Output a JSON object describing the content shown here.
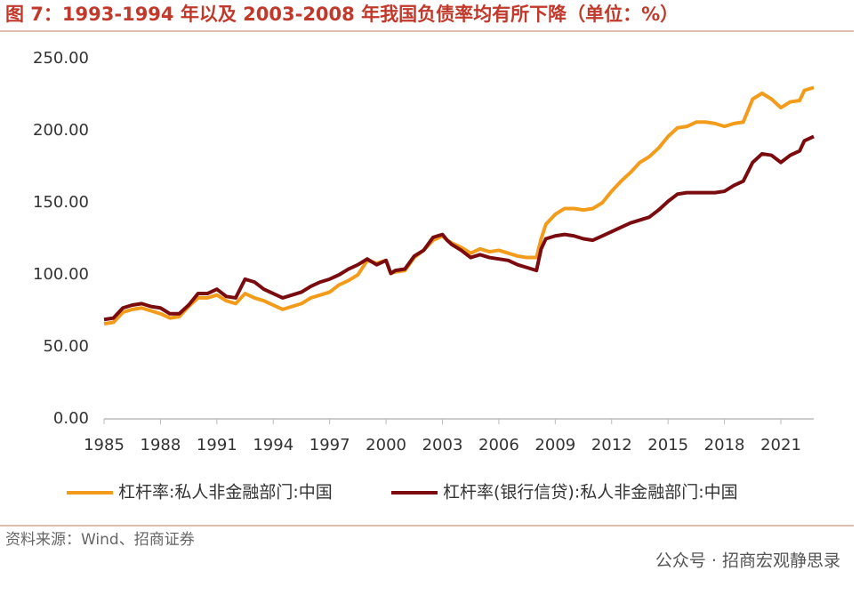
{
  "chart_data": {
    "type": "line",
    "title": "图 7：1993-1994 年以及 2003-2008 年我国负债率均有所下降（单位：%）",
    "source": "资料来源：Wind、招商证券",
    "watermark": "公众号 · 招商宏观静思录",
    "x": [
      1985,
      1985.5,
      1986,
      1986.5,
      1987,
      1987.5,
      1988,
      1988.5,
      1989,
      1989.5,
      1990,
      1990.5,
      1991,
      1991.5,
      1992,
      1992.5,
      1993,
      1993.5,
      1994,
      1994.5,
      1995,
      1995.5,
      1996,
      1996.5,
      1997,
      1997.5,
      1998,
      1998.5,
      1999,
      1999.5,
      2000,
      2000.25,
      2000.5,
      2001,
      2001.5,
      2002,
      2002.5,
      2003,
      2003.25,
      2003.5,
      2004,
      2004.5,
      2005,
      2005.5,
      2006,
      2006.5,
      2007,
      2007.5,
      2008,
      2008.25,
      2008.5,
      2009,
      2009.5,
      2010,
      2010.5,
      2011,
      2011.5,
      2012,
      2012.5,
      2013,
      2013.5,
      2014,
      2014.5,
      2015,
      2015.5,
      2016,
      2016.5,
      2017,
      2017.5,
      2018,
      2018.5,
      2019,
      2019.5,
      2020,
      2020.5,
      2021,
      2021.5,
      2022,
      2022.25,
      2022.75
    ],
    "series": [
      {
        "name": "杠杆率:私人非金融部门:中国",
        "color": "#f39c1b",
        "values": [
          66,
          67,
          74,
          76,
          77,
          75,
          73,
          70,
          71,
          78,
          84,
          84,
          86,
          82,
          80,
          87,
          84,
          82,
          79,
          76,
          78,
          80,
          84,
          86,
          88,
          93,
          96,
          100,
          110,
          108,
          110,
          101,
          102,
          103,
          112,
          117,
          124,
          127,
          124,
          122,
          119,
          115,
          118,
          116,
          117,
          115,
          113,
          112,
          112,
          125,
          135,
          142,
          146,
          146,
          145,
          146,
          150,
          158,
          165,
          171,
          178,
          182,
          188,
          196,
          202,
          203,
          206,
          206,
          205,
          203,
          205,
          206,
          222,
          226,
          222,
          216,
          220,
          221,
          228,
          230
        ]
      },
      {
        "name": "杠杆率(银行信贷):私人非金融部门:中国",
        "color": "#7a0c0f",
        "values": [
          69,
          70,
          77,
          79,
          80,
          78,
          77,
          73,
          73,
          79,
          87,
          87,
          90,
          85,
          84,
          97,
          95,
          90,
          87,
          84,
          86,
          88,
          92,
          95,
          97,
          100,
          104,
          107,
          111,
          107,
          110,
          101,
          103,
          104,
          113,
          117,
          126,
          128,
          124,
          121,
          117,
          112,
          114,
          112,
          111,
          110,
          107,
          105,
          103,
          118,
          125,
          127,
          128,
          127,
          125,
          124,
          127,
          130,
          133,
          136,
          138,
          140,
          145,
          151,
          156,
          157,
          157,
          157,
          157,
          158,
          162,
          165,
          178,
          184,
          183,
          178,
          183,
          186,
          193,
          196
        ]
      }
    ],
    "xlim": [
      1985,
      2022.75
    ],
    "xticks": [
      1985,
      1988,
      1991,
      1994,
      1997,
      2000,
      2003,
      2006,
      2009,
      2012,
      2015,
      2018,
      2021
    ],
    "ylim": [
      0,
      250
    ],
    "yticks": [
      {
        "value": 0,
        "label": "0.00"
      },
      {
        "value": 50,
        "label": "50.00"
      },
      {
        "value": 100,
        "label": "100.00"
      },
      {
        "value": 150,
        "label": "150.00"
      },
      {
        "value": 200,
        "label": "200.00"
      },
      {
        "value": 250,
        "label": "250.00"
      }
    ],
    "grid": false,
    "legend": "bottom"
  }
}
